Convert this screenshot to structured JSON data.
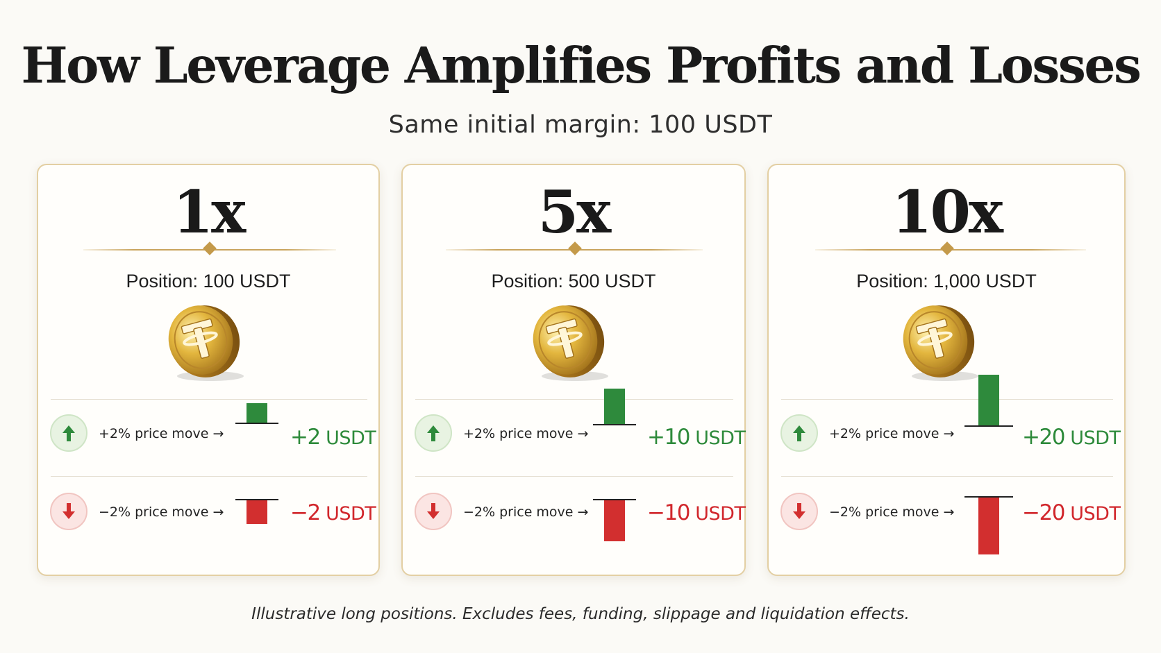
{
  "title": "How Leverage Amplifies Profits and Losses",
  "subtitle": "Same initial margin: 100 USDT",
  "colors": {
    "gain": "#2d8a3a",
    "loss": "#d1262b",
    "gold": "#c9a45c",
    "background": "#fbfaf6"
  },
  "cards": [
    {
      "leverage": "1x",
      "position": "Position: 100 USDT",
      "icon": "tether-coin-icon",
      "up": {
        "label": "+2% price move →",
        "value": "+2",
        "unit": "USDT",
        "amount": 2
      },
      "down": {
        "label": "−2% price move →",
        "value": "−2",
        "unit": "USDT",
        "amount": -2
      }
    },
    {
      "leverage": "5x",
      "position": "Position: 500 USDT",
      "icon": "tether-coin-icon",
      "up": {
        "label": "+2% price move →",
        "value": "+10",
        "unit": "USDT",
        "amount": 10
      },
      "down": {
        "label": "−2% price move →",
        "value": "−10",
        "unit": "USDT",
        "amount": -10
      }
    },
    {
      "leverage": "10x",
      "position": "Position: 1,000 USDT",
      "icon": "tether-coin-icon",
      "up": {
        "label": "+2% price move →",
        "value": "+20",
        "unit": "USDT",
        "amount": 20
      },
      "down": {
        "label": "−2% price move →",
        "value": "−20",
        "unit": "USDT",
        "amount": -20
      }
    }
  ],
  "footnote": "Illustrative long positions. Excludes fees, funding, slippage and liquidation effects."
}
